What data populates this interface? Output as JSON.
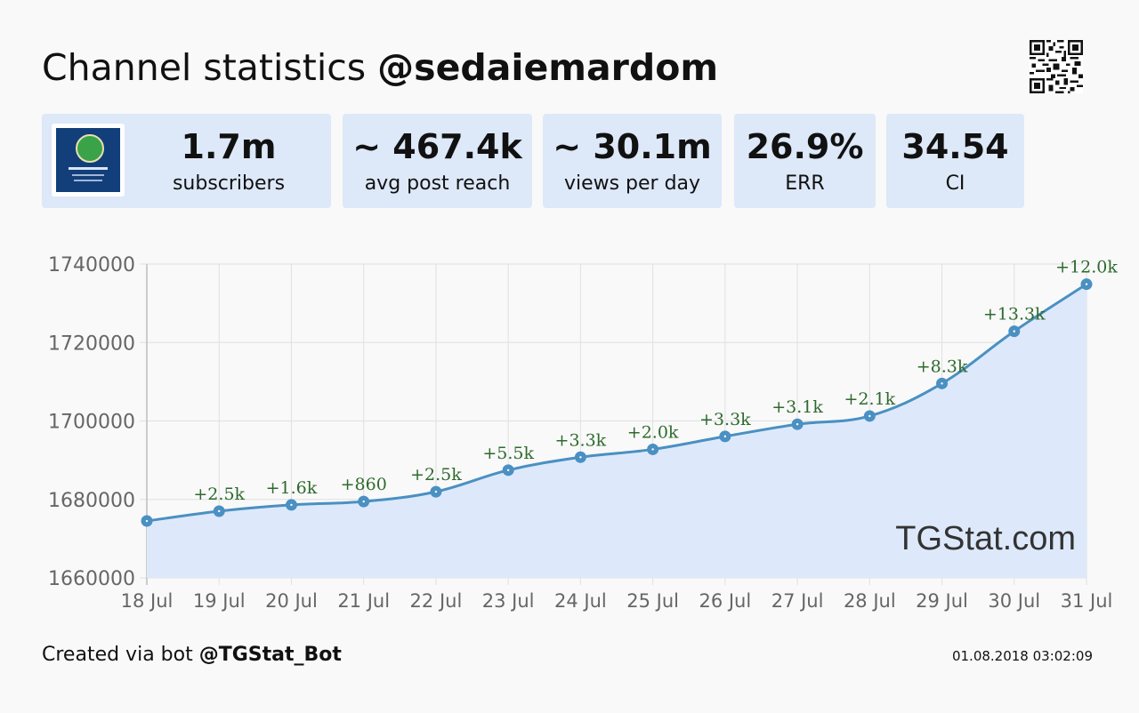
{
  "header": {
    "title_prefix": "Channel statistics",
    "channel_handle": "@sedaiemardom",
    "qr_icon": "qr-code-icon"
  },
  "stats": [
    {
      "value": "1.7m",
      "label": "subscribers"
    },
    {
      "value": "~ 467.4k",
      "label": "avg post reach"
    },
    {
      "value": "~ 30.1m",
      "label": "views per day"
    },
    {
      "value": "26.9%",
      "label": "ERR"
    },
    {
      "value": "34.54",
      "label": "CI"
    }
  ],
  "watermark": "TGStat.com",
  "footer": {
    "created_prefix": "Created via bot",
    "bot_handle": "@TGStat_Bot",
    "timestamp": "01.08.2018 03:02:09"
  },
  "colors": {
    "line": "#4a90c2",
    "fill": "#dde9fb",
    "delta_label": "#2e6a2e",
    "card_bg": "#dde8f8"
  },
  "chart_data": {
    "type": "area",
    "title": "",
    "xlabel": "",
    "ylabel": "",
    "categories": [
      "18 Jul",
      "19 Jul",
      "20 Jul",
      "21 Jul",
      "22 Jul",
      "23 Jul",
      "24 Jul",
      "25 Jul",
      "26 Jul",
      "27 Jul",
      "28 Jul",
      "29 Jul",
      "30 Jul",
      "31 Jul"
    ],
    "series": [
      {
        "name": "subscribers",
        "values": [
          1674500,
          1677000,
          1678600,
          1679460,
          1681960,
          1687460,
          1690760,
          1692760,
          1696060,
          1699160,
          1701260,
          1709560,
          1722860,
          1734860
        ],
        "delta_labels": [
          "",
          "+2.5k",
          "+1.6k",
          "+860",
          "+2.5k",
          "+5.5k",
          "+3.3k",
          "+2.0k",
          "+3.3k",
          "+3.1k",
          "+2.1k",
          "+8.3k",
          "+13.3k",
          "+12.0k"
        ]
      }
    ],
    "ylim": [
      1660000,
      1740000
    ],
    "yticks": [
      1660000,
      1680000,
      1700000,
      1720000,
      1740000
    ],
    "ytick_labels": [
      "1660000",
      "1680000",
      "1700000",
      "1720000",
      "1740000"
    ],
    "grid": true,
    "legend": "none"
  }
}
